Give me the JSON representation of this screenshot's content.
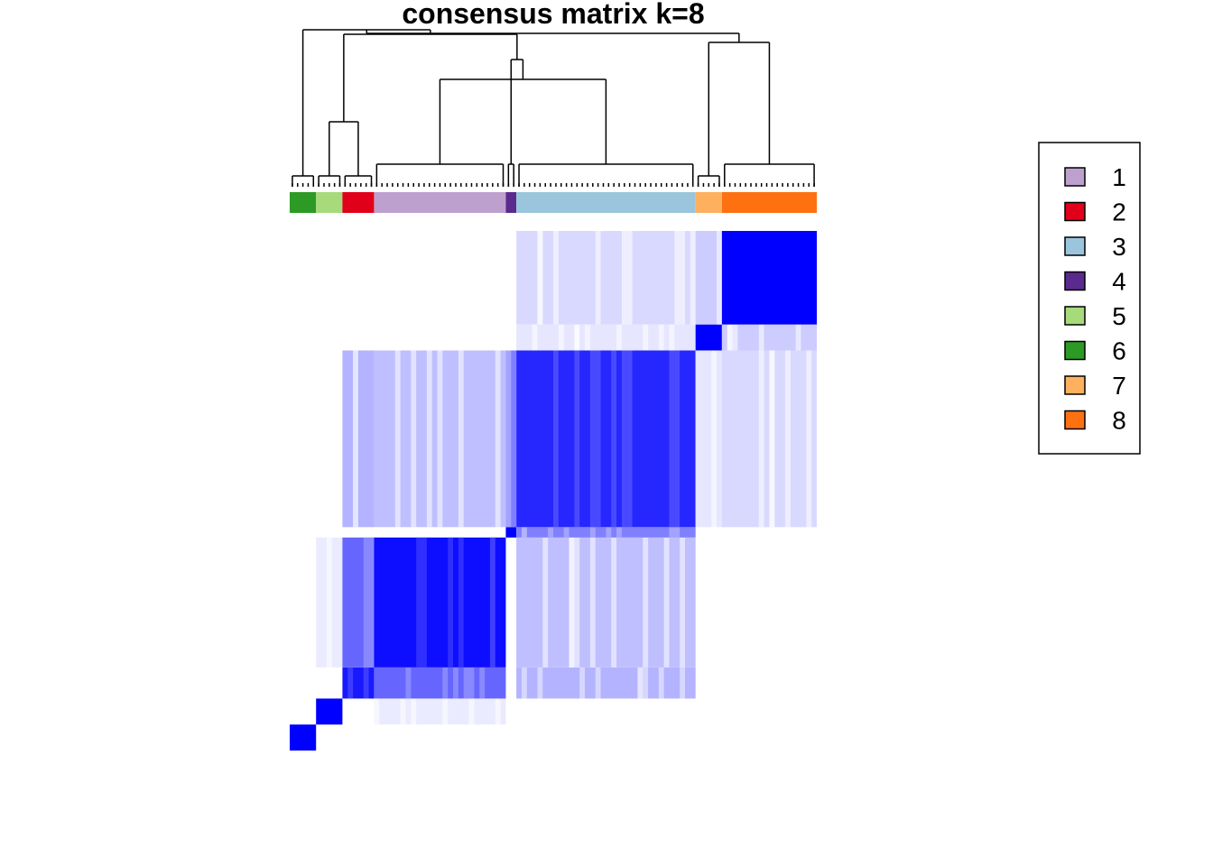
{
  "chart_data": {
    "type": "heatmap",
    "title": "consensus matrix k=8",
    "xlabel": "",
    "ylabel": "",
    "value_range": [
      0,
      1
    ],
    "color_low": "#ffffff",
    "color_high": "#0000ff",
    "legend": {
      "placement": "right",
      "entries": [
        {
          "label": "1",
          "color": "#bea0cf"
        },
        {
          "label": "2",
          "color": "#e1001a"
        },
        {
          "label": "3",
          "color": "#9ac5dc"
        },
        {
          "label": "4",
          "color": "#5b2a8e"
        },
        {
          "label": "5",
          "color": "#a6da7b"
        },
        {
          "label": "6",
          "color": "#2c9a24"
        },
        {
          "label": "7",
          "color": "#fdb05e"
        },
        {
          "label": "8",
          "color": "#fe7110"
        }
      ]
    },
    "cluster_order": [
      "6",
      "5",
      "2",
      "1",
      "4",
      "3",
      "7",
      "8"
    ],
    "cluster_sizes": [
      5,
      5,
      6,
      25,
      2,
      34,
      5,
      18
    ],
    "within_cluster_consensus": [
      1.0,
      1.0,
      0.9,
      0.95,
      1.0,
      0.85,
      1.0,
      1.0
    ],
    "between_cluster_consensus": [
      {
        "a": "1",
        "b": "2",
        "value": 0.6
      },
      {
        "a": "1",
        "b": "3",
        "value": 0.25
      },
      {
        "a": "2",
        "b": "3",
        "value": 0.3
      },
      {
        "a": "3",
        "b": "4",
        "value": 0.5
      },
      {
        "a": "3",
        "b": "8",
        "value": 0.15
      },
      {
        "a": "3",
        "b": "7",
        "value": 0.1
      },
      {
        "a": "5",
        "b": "1",
        "value": 0.08
      },
      {
        "a": "7",
        "b": "8",
        "value": 0.2
      }
    ]
  }
}
